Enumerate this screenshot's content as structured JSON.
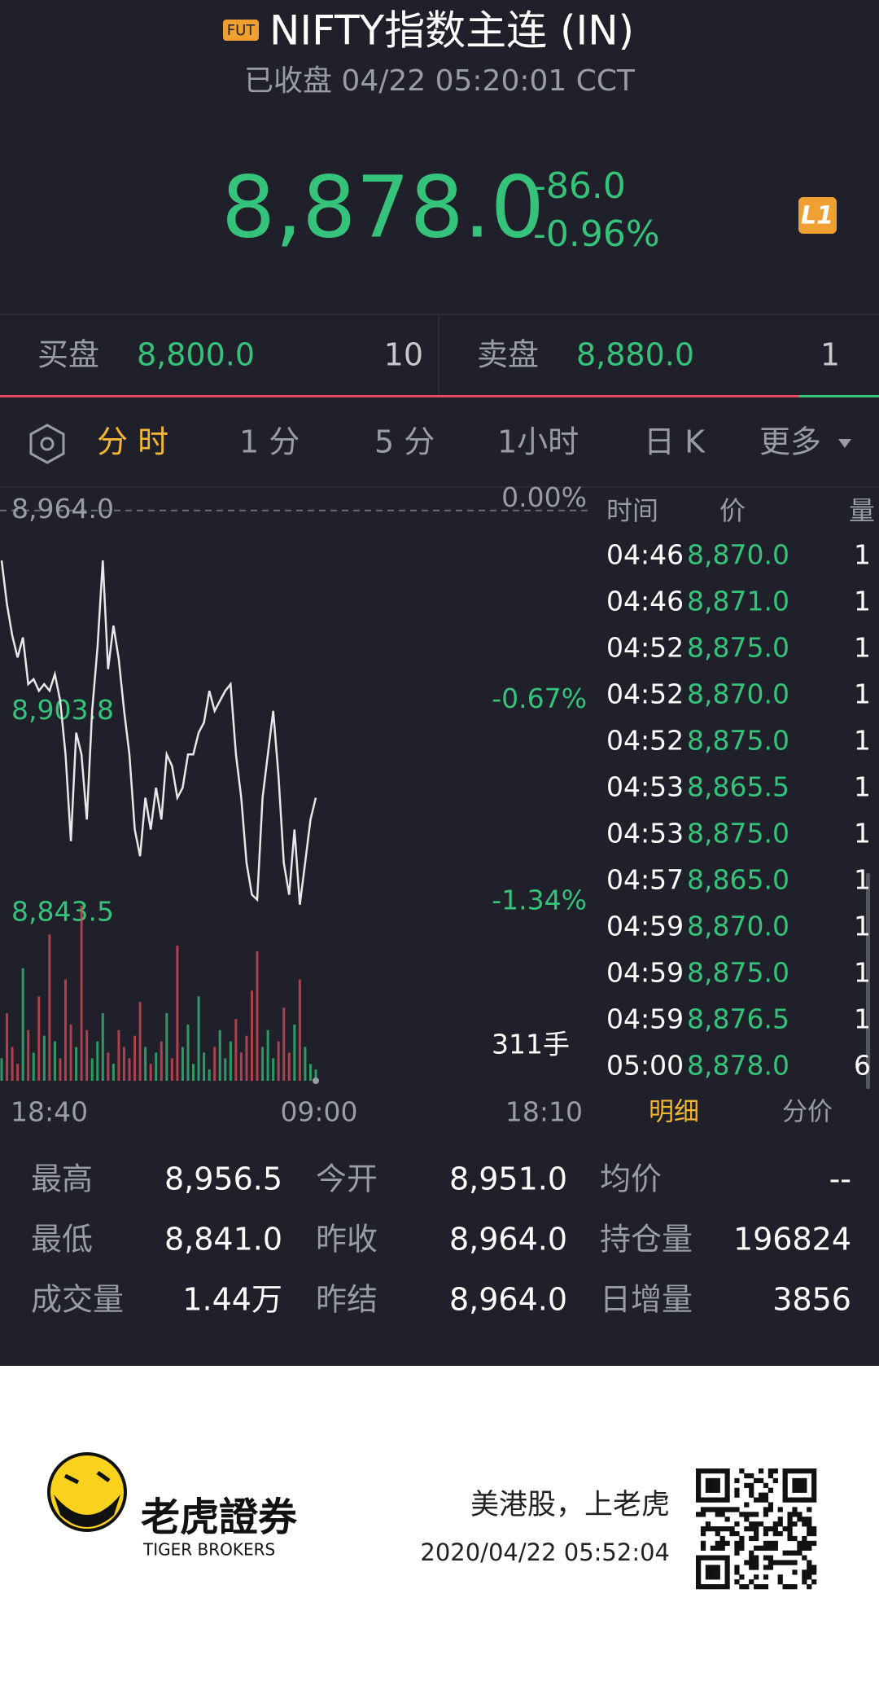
{
  "header": {
    "badge": "FUT",
    "title": "NIFTY指数主连 (IN)",
    "status": "已收盘 04/22 05:20:01 CCT"
  },
  "quote": {
    "price": "8,878.0",
    "change": "-86.0",
    "change_pct": "-0.96%",
    "level_badge": "L1"
  },
  "order_book": {
    "bid_label": "买盘",
    "bid_price": "8,800.0",
    "bid_size": "10",
    "ask_label": "卖盘",
    "ask_price": "8,880.0",
    "ask_size": "1"
  },
  "tabs": [
    "分 时",
    "1 分",
    "5 分",
    "1小时",
    "日 K",
    "更多"
  ],
  "active_tab": 0,
  "intraday": {
    "ylim": [
      8834,
      8971
    ],
    "yticks": [
      {
        "value": 8964,
        "label": "8,964.0"
      },
      {
        "value": 8903.8,
        "label": "8,903.8"
      },
      {
        "value": 8843.5,
        "label": "8,843.5"
      }
    ],
    "y2ticks": [
      {
        "value": 8964,
        "label": "0.00%"
      },
      {
        "value": 8903.8,
        "label": "-0.67%"
      },
      {
        "value": 8843.5,
        "label": "-1.34%"
      }
    ],
    "xticks": [
      "18:40",
      "09:00",
      "18:10"
    ],
    "line_color": "#e8e8ea",
    "up_color": "#35c27a",
    "down_color": "#e04b5a",
    "prices": [
      8949,
      8936,
      8926.5,
      8920,
      8926,
      8912,
      8913.5,
      8910,
      8912,
      8910,
      8915,
      8907,
      8891,
      8865,
      8897.5,
      8891,
      8871.5,
      8904,
      8923,
      8949,
      8916.5,
      8929.5,
      8919.5,
      8904,
      8891,
      8868.5,
      8860.5,
      8878,
      8868.5,
      8881,
      8871.5,
      8891,
      8887.5,
      8878,
      8881,
      8891,
      8891,
      8897.5,
      8900.5,
      8910,
      8904,
      8907,
      8910,
      8912,
      8891,
      8878,
      8858.5,
      8849,
      8847.5,
      8878,
      8891,
      8904,
      8884.5,
      8858.5,
      8849,
      8868.5,
      8846,
      8858.5,
      8871.5,
      8878
    ],
    "volumes": [
      40,
      120,
      60,
      30,
      200,
      90,
      50,
      150,
      80,
      260,
      70,
      40,
      180,
      100,
      60,
      311,
      90,
      40,
      70,
      120,
      50,
      30,
      90,
      60,
      40,
      80,
      140,
      60,
      30,
      50,
      70,
      120,
      40,
      240,
      60,
      100,
      30,
      150,
      50,
      20,
      60,
      90,
      40,
      70,
      110,
      50,
      80,
      160,
      230,
      60,
      90,
      40,
      70,
      130,
      50,
      100,
      180,
      60,
      30,
      20
    ],
    "volume_max": {
      "value": 311,
      "label": "311手"
    }
  },
  "trades": {
    "headers": [
      "时间",
      "价",
      "量"
    ],
    "rows": [
      [
        "04:46",
        "8,870.0",
        "1"
      ],
      [
        "04:46",
        "8,871.0",
        "1"
      ],
      [
        "04:52",
        "8,875.0",
        "1"
      ],
      [
        "04:52",
        "8,870.0",
        "1"
      ],
      [
        "04:52",
        "8,875.0",
        "1"
      ],
      [
        "04:53",
        "8,865.5",
        "1"
      ],
      [
        "04:53",
        "8,875.0",
        "1"
      ],
      [
        "04:57",
        "8,865.0",
        "1"
      ],
      [
        "04:59",
        "8,870.0",
        "1"
      ],
      [
        "04:59",
        "8,875.0",
        "1"
      ],
      [
        "04:59",
        "8,876.5",
        "1"
      ],
      [
        "05:00",
        "8,878.0",
        "6"
      ]
    ]
  },
  "trade_tabs": [
    "明细",
    "分价"
  ],
  "stats": [
    [
      "最高",
      "8,956.5",
      "今开",
      "8,951.0",
      "均价",
      "--"
    ],
    [
      "最低",
      "8,841.0",
      "昨收",
      "8,964.0",
      "持仓量",
      "196824"
    ],
    [
      "成交量",
      "1.44万",
      "昨结",
      "8,964.0",
      "日增量",
      "3856"
    ]
  ],
  "footer": {
    "brand_cn": "老虎證券",
    "brand_en": "TIGER BROKERS",
    "slogan": "美港股，上老虎",
    "timestamp": "2020/04/22 05:52:04"
  }
}
